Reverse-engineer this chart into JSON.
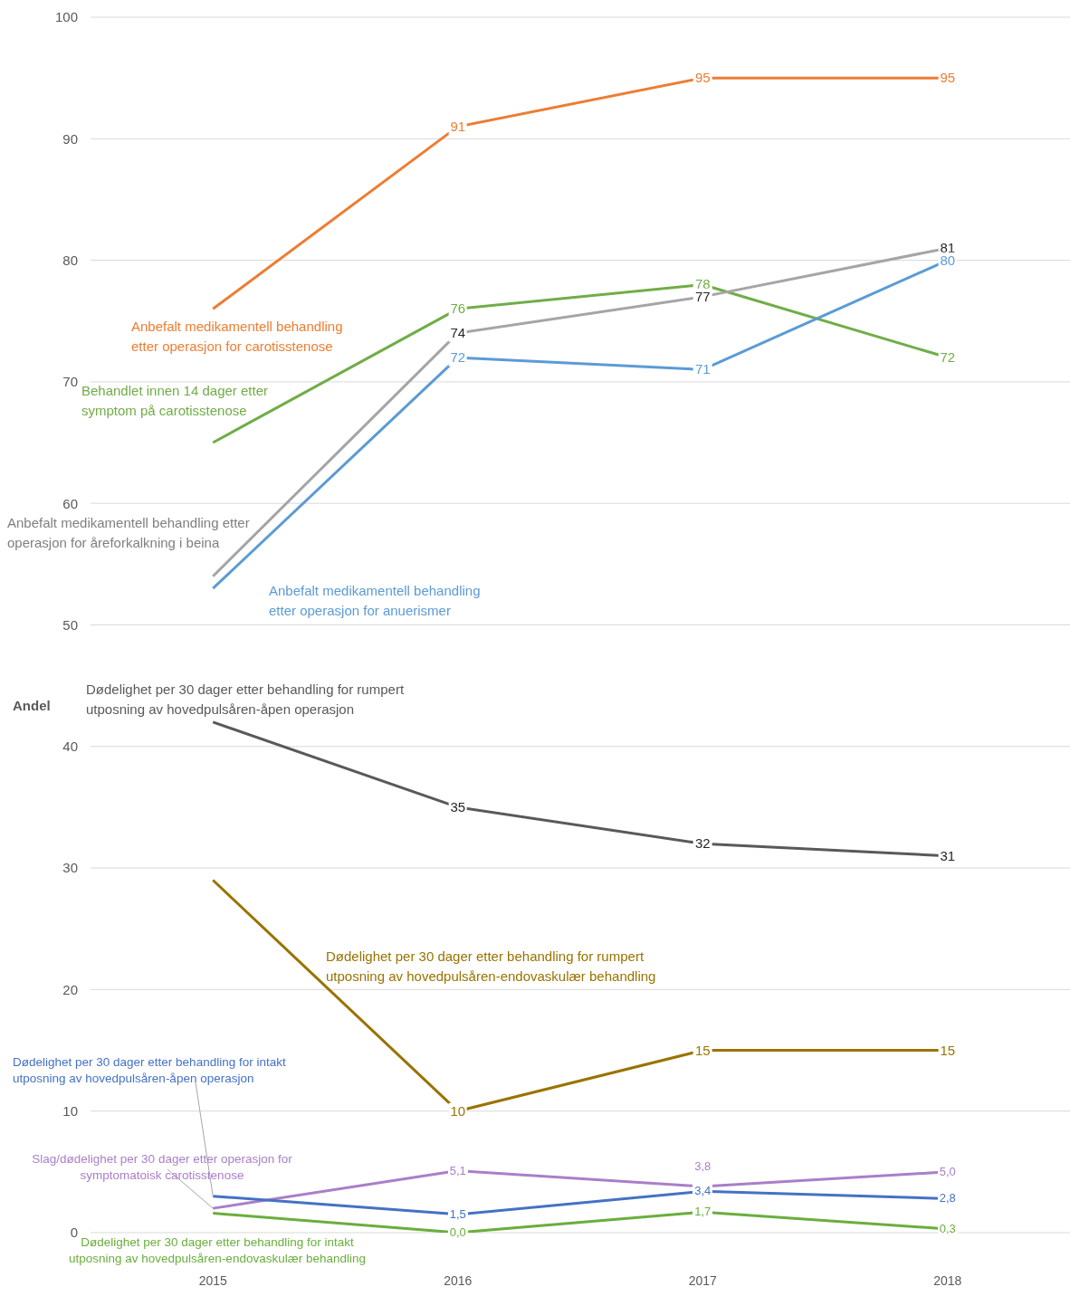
{
  "chart_data": {
    "type": "line",
    "ylabel": "Andel",
    "categories": [
      "2015",
      "2016",
      "2017",
      "2018"
    ],
    "ylim": [
      0,
      100
    ],
    "yticks": [
      0,
      10,
      20,
      30,
      40,
      50,
      60,
      70,
      80,
      90,
      100
    ],
    "grid": "y",
    "legend": false,
    "line_style": "solid",
    "series": [
      {
        "name": "Anbefalt medikamentell behandling etter operasjon for carotisstenose",
        "color": "#ed7d31",
        "values": [
          76,
          91,
          95,
          95
        ],
        "value_labels": [
          null,
          "91",
          "95",
          "95"
        ]
      },
      {
        "name": "Behandlet innen 14 dager etter symptom på carotisstenose",
        "color": "#70ad47",
        "values": [
          65,
          76,
          78,
          72
        ],
        "value_labels": [
          null,
          "76",
          "78",
          "72"
        ]
      },
      {
        "name": "Anbefalt medikamentell behandling etter operasjon for åreforkalkning i beina",
        "color": "#a5a5a5",
        "values": [
          54,
          74,
          77,
          81
        ],
        "value_labels": [
          null,
          "74",
          "77",
          "81"
        ]
      },
      {
        "name": "Anbefalt medikamentell behandling etter operasjon for anuerismer",
        "color": "#5b9bd5",
        "values": [
          53,
          72,
          71,
          80
        ],
        "value_labels": [
          null,
          "72",
          "71",
          "80"
        ]
      },
      {
        "name": "Dødelighet per 30 dager etter behandling for rumpert utposning av hovedpulsåren-åpen operasjon",
        "color": "#595959",
        "values": [
          42,
          35,
          32,
          31
        ],
        "value_labels": [
          null,
          "35",
          "32",
          "31"
        ]
      },
      {
        "name": "Dødelighet per 30 dager etter behandling for rumpert utposning av hovedpulsåren-endovaskulær behandling",
        "color": "#997300",
        "values": [
          29,
          10,
          15,
          15
        ],
        "value_labels": [
          null,
          "10",
          "15",
          "15"
        ]
      },
      {
        "name": "Slag/dødelighet per 30 dager etter operasjon for symptomatoisk carotisstenose",
        "color": "#a97fc9",
        "values": [
          2.0,
          5.1,
          3.8,
          5.0
        ],
        "value_labels": [
          null,
          "5,1",
          "3,8",
          "5,0"
        ]
      },
      {
        "name": "Dødelighet per 30 dager etter behandling for intakt utposning av hovedpulsåren-åpen operasjon",
        "color": "#4472c4",
        "values": [
          3.0,
          1.5,
          3.4,
          2.8
        ],
        "value_labels": [
          null,
          "1,5",
          "3,4",
          "2,8"
        ]
      },
      {
        "name": "Dødelighet per 30 dager etter behandling for intakt utposning av hovedpulsåren-endovaskulær behandling",
        "color": "#6aae3c",
        "values": [
          1.6,
          0.0,
          1.7,
          0.3
        ],
        "value_labels": [
          null,
          "0,0",
          "1,7",
          "0,3"
        ]
      }
    ]
  }
}
